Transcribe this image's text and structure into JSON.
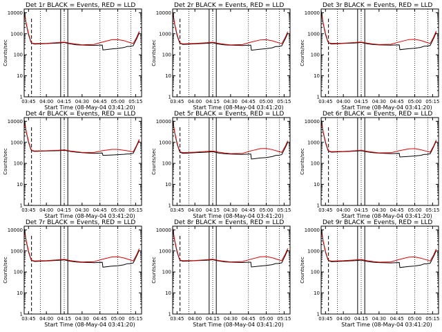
{
  "chart_data": {
    "type": "line",
    "layout": "3x3 grid of panels",
    "legend_text": "BLACK = Events, RED = LLD",
    "xlabel": "Start Time (08-May-04 03:41:20)",
    "ylabel": "Counts/sec",
    "ylog": true,
    "ylim": [
      1,
      15000
    ],
    "yticks": [
      1,
      10,
      100,
      1000,
      10000
    ],
    "ytick_labels": [
      "1",
      "10",
      "100",
      "1000",
      "10000"
    ],
    "xlim": [
      "03:41:20",
      "05:20:00"
    ],
    "xtick_labels": [
      "03:45",
      "04:00",
      "04:15",
      "04:30",
      "04:45",
      "05:00",
      "05:15"
    ],
    "xtick_minutes": [
      225,
      240,
      255,
      270,
      285,
      300,
      315
    ],
    "dotted_verticals_minutes": [
      235,
      255,
      285,
      300,
      311
    ],
    "solid_verticals_minutes": [
      252,
      258
    ],
    "dashed_verticals_minutes": [
      227.5
    ],
    "colors": {
      "events": "#000000",
      "lld": "#e00000"
    },
    "panels": [
      {
        "title": "Det 1r BLACK = Events, RED = LLD",
        "series": [
          {
            "name": "Events",
            "x": [
              221.5,
              223,
              225,
              227,
              228,
              230,
              240,
              250,
              255,
              260,
              265,
              270,
              280,
              287,
              287.5,
              295,
              300,
              305,
              308,
              310,
              313,
              316,
              318
            ],
            "y": [
              11000,
              3000,
              900,
              400,
              350,
              320,
              340,
              360,
              380,
              330,
              300,
              290,
              280,
              290,
              170,
              190,
              200,
              220,
              250,
              250,
              270,
              600,
              1100
            ]
          },
          {
            "name": "LLD",
            "x": [
              221.5,
              223,
              225,
              227,
              228,
              230,
              240,
              250,
              255,
              260,
              265,
              270,
              280,
              287,
              295,
              300,
              305,
              310,
              313,
              316,
              318
            ],
            "y": [
              10000,
              3200,
              1000,
              420,
              360,
              340,
              350,
              380,
              400,
              350,
              320,
              300,
              310,
              400,
              520,
              530,
              470,
              380,
              340,
              700,
              1300
            ]
          }
        ]
      },
      {
        "title": "Det 2r BLACK = Events, RED = LLD",
        "series": [
          {
            "name": "Events",
            "x": [
              221.5,
              223,
              225,
              227,
              228,
              230,
              240,
              250,
              255,
              260,
              265,
              270,
              280,
              287,
              287.5,
              295,
              300,
              305,
              308,
              310,
              313,
              316,
              318
            ],
            "y": [
              10500,
              2800,
              850,
              390,
              340,
              310,
              330,
              350,
              370,
              320,
              295,
              285,
              275,
              285,
              165,
              185,
              195,
              215,
              245,
              245,
              265,
              580,
              1050
            ]
          },
          {
            "name": "LLD",
            "x": [
              221.5,
              223,
              225,
              227,
              228,
              230,
              240,
              250,
              255,
              260,
              265,
              270,
              280,
              287,
              295,
              300,
              305,
              310,
              313,
              316,
              318
            ],
            "y": [
              9800,
              3000,
              950,
              410,
              350,
              330,
              345,
              375,
              395,
              345,
              315,
              295,
              305,
              395,
              510,
              520,
              460,
              375,
              335,
              680,
              1250
            ]
          }
        ]
      },
      {
        "title": "Det 3r BLACK = Events, RED = LLD",
        "series": [
          {
            "name": "Events",
            "x": [
              221.5,
              223,
              225,
              227,
              228,
              230,
              240,
              250,
              255,
              260,
              265,
              270,
              280,
              287,
              287.5,
              295,
              300,
              305,
              308,
              310,
              313,
              316,
              318
            ],
            "y": [
              11500,
              3100,
              920,
              410,
              355,
              325,
              345,
              365,
              385,
              335,
              305,
              295,
              285,
              295,
              175,
              195,
              205,
              225,
              255,
              255,
              275,
              620,
              1150
            ]
          },
          {
            "name": "LLD",
            "x": [
              221.5,
              223,
              225,
              227,
              228,
              230,
              240,
              250,
              255,
              260,
              265,
              270,
              280,
              287,
              295,
              300,
              305,
              310,
              313,
              316,
              318
            ],
            "y": [
              10200,
              3300,
              1020,
              430,
              365,
              345,
              355,
              385,
              405,
              355,
              325,
              305,
              315,
              405,
              530,
              540,
              480,
              385,
              345,
              720,
              1350
            ]
          }
        ]
      },
      {
        "title": "Det 4r BLACK = Events, RED = LLD",
        "series": [
          {
            "name": "Events",
            "x": [
              221.5,
              223,
              225,
              227,
              228,
              230,
              240,
              250,
              255,
              260,
              265,
              270,
              280,
              287,
              287.5,
              295,
              300,
              305,
              308,
              310,
              313,
              316,
              318
            ],
            "y": [
              11000,
              3200,
              1000,
              450,
              400,
              370,
              390,
              400,
              420,
              370,
              340,
              320,
              300,
              310,
              240,
              250,
              260,
              270,
              280,
              280,
              300,
              700,
              1200
            ]
          },
          {
            "name": "LLD",
            "x": [
              221.5,
              223,
              225,
              227,
              228,
              230,
              240,
              250,
              255,
              260,
              265,
              270,
              280,
              287,
              295,
              300,
              305,
              310,
              313,
              316,
              318
            ],
            "y": [
              10000,
              3400,
              1100,
              470,
              410,
              390,
              400,
              420,
              440,
              390,
              360,
              330,
              330,
              400,
              460,
              460,
              420,
              380,
              350,
              760,
              1400
            ]
          }
        ]
      },
      {
        "title": "Det 5r BLACK = Events, RED = LLD",
        "series": [
          {
            "name": "Events",
            "x": [
              221.5,
              223,
              225,
              227,
              228,
              230,
              240,
              250,
              255,
              260,
              265,
              270,
              280,
              287,
              287.5,
              295,
              300,
              305,
              308,
              310,
              313,
              316,
              318
            ],
            "y": [
              10800,
              2900,
              880,
              380,
              330,
              300,
              320,
              340,
              360,
              310,
              285,
              275,
              265,
              280,
              160,
              180,
              190,
              210,
              240,
              240,
              260,
              560,
              1000
            ]
          },
          {
            "name": "LLD",
            "x": [
              221.5,
              223,
              225,
              227,
              228,
              230,
              240,
              250,
              255,
              260,
              265,
              270,
              280,
              287,
              295,
              300,
              305,
              310,
              313,
              316,
              318
            ],
            "y": [
              9600,
              3100,
              960,
              400,
              345,
              325,
              340,
              370,
              390,
              340,
              310,
              290,
              300,
              390,
              500,
              510,
              450,
              370,
              330,
              660,
              1200
            ]
          }
        ]
      },
      {
        "title": "Det 6r BLACK = Events, RED = LLD",
        "series": [
          {
            "name": "Events",
            "x": [
              221.5,
              223,
              225,
              227,
              228,
              230,
              240,
              250,
              255,
              260,
              265,
              270,
              280,
              287,
              287.5,
              295,
              300,
              305,
              308,
              310,
              313,
              316,
              318
            ],
            "y": [
              11200,
              3000,
              950,
              420,
              370,
              340,
              360,
              380,
              400,
              350,
              320,
              305,
              290,
              300,
              200,
              215,
              225,
              240,
              265,
              265,
              285,
              640,
              1150
            ]
          },
          {
            "name": "LLD",
            "x": [
              221.5,
              223,
              225,
              227,
              228,
              230,
              240,
              250,
              255,
              260,
              265,
              270,
              280,
              287,
              295,
              300,
              305,
              310,
              313,
              316,
              318
            ],
            "y": [
              10100,
              3250,
              1050,
              440,
              380,
              360,
              370,
              400,
              420,
              370,
              340,
              315,
              320,
              400,
              490,
              500,
              445,
              375,
              340,
              700,
              1300
            ]
          }
        ]
      },
      {
        "title": "Det 7r BLACK = Events, RED = LLD",
        "series": [
          {
            "name": "Events",
            "x": [
              221.5,
              223,
              225,
              227,
              228,
              230,
              240,
              250,
              255,
              260,
              265,
              270,
              280,
              287,
              287.5,
              295,
              300,
              305,
              308,
              310,
              313,
              316,
              318
            ],
            "y": [
              10900,
              2950,
              890,
              395,
              345,
              315,
              335,
              355,
              375,
              325,
              298,
              288,
              278,
              288,
              168,
              188,
              198,
              218,
              248,
              248,
              268,
              590,
              1080
            ]
          },
          {
            "name": "LLD",
            "x": [
              221.5,
              223,
              225,
              227,
              228,
              230,
              240,
              250,
              255,
              260,
              265,
              270,
              280,
              287,
              295,
              300,
              305,
              310,
              313,
              316,
              318
            ],
            "y": [
              9900,
              3150,
              980,
              415,
              355,
              335,
              348,
              378,
              398,
              348,
              318,
              298,
              308,
              398,
              515,
              525,
              465,
              378,
              338,
              690,
              1280
            ]
          }
        ]
      },
      {
        "title": "Det 8r BLACK = Events, RED = LLD",
        "series": [
          {
            "name": "Events",
            "x": [
              221.5,
              223,
              225,
              227,
              228,
              230,
              240,
              250,
              255,
              260,
              265,
              270,
              280,
              287,
              287.5,
              295,
              300,
              305,
              308,
              310,
              313,
              316,
              318
            ],
            "y": [
              11100,
              3050,
              910,
              405,
              352,
              322,
              342,
              362,
              382,
              332,
              302,
              292,
              282,
              292,
              172,
              192,
              202,
              222,
              252,
              252,
              272,
              610,
              1120
            ]
          },
          {
            "name": "LLD",
            "x": [
              221.5,
              223,
              225,
              227,
              228,
              230,
              240,
              250,
              255,
              260,
              265,
              270,
              280,
              287,
              295,
              300,
              305,
              310,
              313,
              316,
              318
            ],
            "y": [
              10050,
              3250,
              1010,
              425,
              362,
              342,
              352,
              382,
              402,
              352,
              322,
              302,
              312,
              402,
              525,
              535,
              475,
              382,
              342,
              710,
              1320
            ]
          }
        ]
      },
      {
        "title": "Det 9r BLACK = Events, RED = LLD",
        "series": [
          {
            "name": "Events",
            "x": [
              221.5,
              223,
              225,
              227,
              228,
              230,
              240,
              250,
              255,
              260,
              265,
              270,
              280,
              287,
              287.5,
              295,
              300,
              305,
              308,
              310,
              313,
              316,
              318
            ],
            "y": [
              10700,
              2850,
              870,
              385,
              335,
              305,
              325,
              345,
              365,
              315,
              290,
              280,
              270,
              282,
              162,
              182,
              192,
              212,
              242,
              242,
              262,
              570,
              1030
            ]
          },
          {
            "name": "LLD",
            "x": [
              221.5,
              223,
              225,
              227,
              228,
              230,
              240,
              250,
              255,
              260,
              265,
              270,
              280,
              287,
              295,
              300,
              305,
              310,
              313,
              316,
              318
            ],
            "y": [
              9700,
              3050,
              940,
              405,
              348,
              328,
              342,
              372,
              392,
              342,
              312,
              292,
              302,
              392,
              505,
              515,
              455,
              372,
              332,
              670,
              1230
            ]
          }
        ]
      }
    ]
  }
}
